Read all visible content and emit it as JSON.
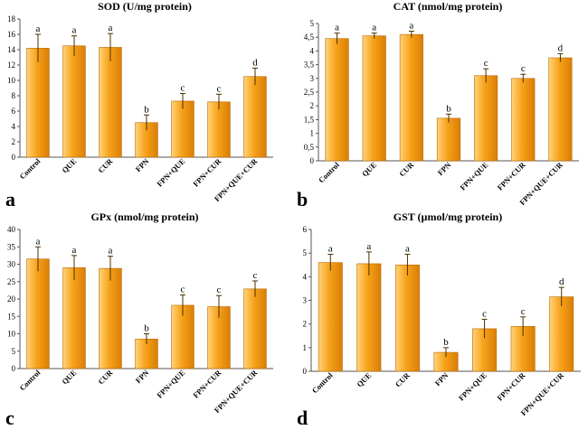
{
  "colors": {
    "bar_top": "#ffd37a",
    "bar_mid": "#f7a21a",
    "bar_dark": "#d97e06",
    "bar_edge": "#b86a00",
    "axis": "#555555",
    "text": "#000000"
  },
  "chart_data": [
    {
      "panel": "a",
      "type": "bar",
      "title": "SOD (U/mg protein)",
      "categories": [
        "Control",
        "QUE",
        "CUR",
        "FPN",
        "FPN+QUE",
        "FPN+CUR",
        "FPN+QUE+CUR"
      ],
      "values": [
        14.2,
        14.5,
        14.3,
        4.5,
        7.3,
        7.2,
        10.5
      ],
      "errors": [
        1.8,
        1.3,
        1.8,
        1.0,
        1.0,
        1.0,
        1.1
      ],
      "letters": [
        "a",
        "a",
        "a",
        "b",
        "c",
        "c",
        "d"
      ],
      "ylim": [
        0,
        18
      ],
      "yticks": [
        "0",
        "2",
        "4",
        "6",
        "8",
        "10",
        "12",
        "14",
        "16",
        "18"
      ]
    },
    {
      "panel": "b",
      "type": "bar",
      "title": "CAT (nmol/mg protein)",
      "categories": [
        "Control",
        "QUE",
        "CUR",
        "FPN",
        "FPN+QUE",
        "FPN+CUR",
        "FPN+QUE+CUR"
      ],
      "values": [
        4.45,
        4.55,
        4.6,
        1.55,
        3.1,
        3.0,
        3.75
      ],
      "errors": [
        0.2,
        0.1,
        0.12,
        0.15,
        0.25,
        0.15,
        0.15
      ],
      "letters": [
        "a",
        "a",
        "a",
        "b",
        "c",
        "c",
        "d"
      ],
      "ylim": [
        0,
        5
      ],
      "yticks": [
        "0",
        "0,5",
        "1",
        "1,5",
        "2",
        "2,5",
        "3",
        "3,5",
        "4",
        "4,5",
        "5"
      ]
    },
    {
      "panel": "c",
      "type": "bar",
      "title": "GPx (nmol/mg protein)",
      "categories": [
        "Control",
        "QUE",
        "CUR",
        "FPN",
        "FPN+QUE",
        "FPN+CUR",
        "FPN+QUE+CUR"
      ],
      "values": [
        31.5,
        29.0,
        28.8,
        8.5,
        18.2,
        17.8,
        22.9
      ],
      "errors": [
        3.5,
        3.5,
        3.5,
        1.5,
        3.0,
        3.2,
        2.3
      ],
      "letters": [
        "a",
        "a",
        "a",
        "b",
        "c",
        "c",
        "c"
      ],
      "ylim": [
        0,
        40
      ],
      "yticks": [
        "0",
        "5",
        "10",
        "15",
        "20",
        "25",
        "30",
        "35",
        "40"
      ]
    },
    {
      "panel": "d",
      "type": "bar",
      "title": "GST (µmol/mg protein)",
      "categories": [
        "Control",
        "QUE",
        "CUR",
        "FPN",
        "FPN+QUE",
        "FPN+CUR",
        "FPN+QUE+CUR"
      ],
      "values": [
        4.6,
        4.55,
        4.5,
        0.8,
        1.8,
        1.9,
        3.15
      ],
      "errors": [
        0.35,
        0.5,
        0.45,
        0.2,
        0.4,
        0.4,
        0.4
      ],
      "letters": [
        "a",
        "a",
        "a",
        "b",
        "c",
        "c",
        "d"
      ],
      "ylim": [
        0,
        6
      ],
      "yticks": [
        "0",
        "1",
        "2",
        "3",
        "4",
        "5",
        "6"
      ]
    }
  ],
  "panel_letters": [
    "a",
    "b",
    "c",
    "d"
  ]
}
